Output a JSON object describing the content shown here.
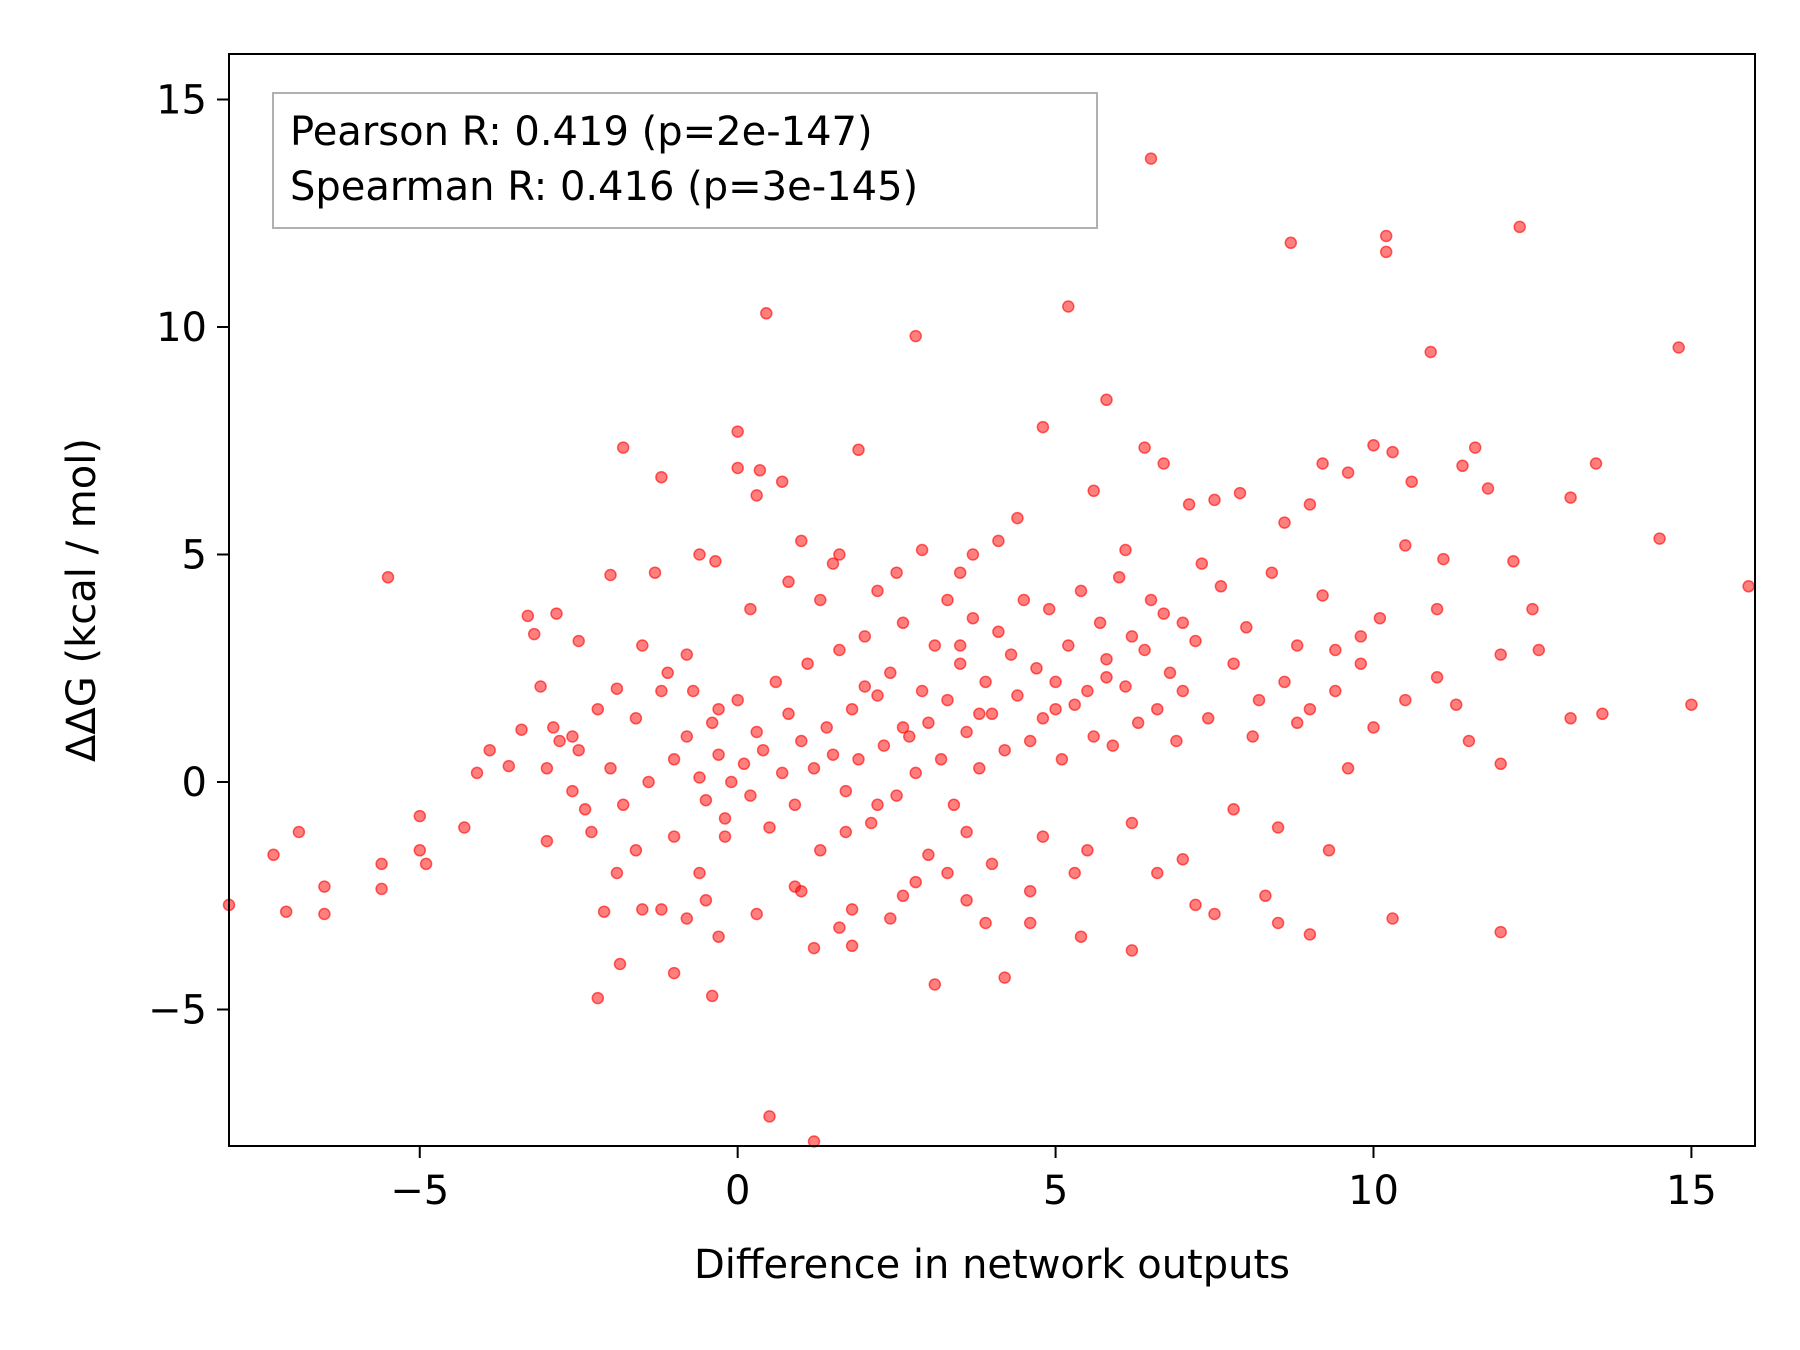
{
  "chart_data": {
    "type": "scatter",
    "title": "",
    "xlabel": "Difference in network outputs",
    "ylabel": "ΔΔG (kcal / mol)",
    "xlim": [
      -8,
      16
    ],
    "ylim": [
      -8,
      16
    ],
    "xticks": [
      -5,
      0,
      5,
      10,
      15
    ],
    "yticks": [
      -5,
      0,
      5,
      10,
      15
    ],
    "xtick_labels": [
      "−5",
      "0",
      "5",
      "10",
      "15"
    ],
    "ytick_labels": [
      "−5",
      "0",
      "5",
      "10",
      "15"
    ],
    "grid": false,
    "annotation": {
      "lines": [
        "Pearson R: 0.419 (p=2e-147)",
        "Spearman R: 0.416 (p=3e-145)"
      ],
      "placement": "top-left"
    },
    "marker_color": "#ff0000",
    "marker_alpha": 0.5,
    "series": [
      {
        "points": [
          [
            -8.0,
            -2.7
          ],
          [
            -7.3,
            -1.6
          ],
          [
            -7.1,
            -2.85
          ],
          [
            -6.9,
            -1.1
          ],
          [
            -6.5,
            -2.3
          ],
          [
            -6.5,
            -2.9
          ],
          [
            -5.6,
            -1.8
          ],
          [
            -5.6,
            -2.35
          ],
          [
            -5.5,
            4.5
          ],
          [
            -5.0,
            -0.75
          ],
          [
            -5.0,
            -1.5
          ],
          [
            -4.9,
            -1.8
          ],
          [
            -4.3,
            -1.0
          ],
          [
            -4.1,
            0.2
          ],
          [
            -3.9,
            0.7
          ],
          [
            -3.6,
            0.35
          ],
          [
            -3.4,
            1.15
          ],
          [
            -3.3,
            3.65
          ],
          [
            -3.2,
            3.25
          ],
          [
            -3.1,
            2.1
          ],
          [
            -3.0,
            0.3
          ],
          [
            -2.9,
            1.2
          ],
          [
            -2.85,
            3.7
          ],
          [
            -2.6,
            1.0
          ],
          [
            -2.5,
            0.7
          ],
          [
            -2.5,
            3.1
          ],
          [
            -2.4,
            -0.6
          ],
          [
            -2.3,
            -1.1
          ],
          [
            -2.2,
            -4.75
          ],
          [
            -2.1,
            -2.85
          ],
          [
            -2.0,
            4.55
          ],
          [
            -1.9,
            2.05
          ],
          [
            -1.9,
            -2.0
          ],
          [
            -1.85,
            -4.0
          ],
          [
            -1.8,
            7.35
          ],
          [
            -1.6,
            -1.5
          ],
          [
            -1.5,
            -2.8
          ],
          [
            -1.3,
            4.6
          ],
          [
            -1.2,
            6.7
          ],
          [
            -1.2,
            -2.8
          ],
          [
            -1.1,
            2.4
          ],
          [
            -1.0,
            -4.2
          ],
          [
            -0.8,
            -3.0
          ],
          [
            -0.7,
            2.0
          ],
          [
            -0.6,
            5.0
          ],
          [
            -0.4,
            -4.7
          ],
          [
            -0.35,
            4.85
          ],
          [
            -0.3,
            1.6
          ],
          [
            -0.3,
            -3.4
          ],
          [
            -0.2,
            -1.2
          ],
          [
            0.0,
            7.7
          ],
          [
            0.0,
            6.9
          ],
          [
            0.3,
            6.3
          ],
          [
            0.35,
            6.85
          ],
          [
            0.45,
            10.3
          ],
          [
            0.5,
            -7.35
          ],
          [
            0.7,
            6.6
          ],
          [
            0.9,
            -2.3
          ],
          [
            1.0,
            5.3
          ],
          [
            1.2,
            -3.65
          ],
          [
            1.2,
            -7.9
          ],
          [
            1.3,
            4.0
          ],
          [
            1.6,
            5.0
          ],
          [
            1.7,
            -1.1
          ],
          [
            1.8,
            -3.6
          ],
          [
            1.9,
            7.3
          ],
          [
            2.0,
            2.1
          ],
          [
            2.2,
            -0.5
          ],
          [
            2.5,
            4.6
          ],
          [
            2.6,
            1.2
          ],
          [
            2.8,
            -2.2
          ],
          [
            2.8,
            9.8
          ],
          [
            3.0,
            -1.6
          ],
          [
            3.1,
            -4.45
          ],
          [
            3.3,
            4.0
          ],
          [
            3.5,
            3.0
          ],
          [
            3.6,
            -1.1
          ],
          [
            3.7,
            5.0
          ],
          [
            3.8,
            1.5
          ],
          [
            3.9,
            -3.1
          ],
          [
            4.2,
            -4.3
          ],
          [
            4.4,
            5.8
          ],
          [
            4.6,
            -3.1
          ],
          [
            4.8,
            7.8
          ],
          [
            5.0,
            1.6
          ],
          [
            5.2,
            10.45
          ],
          [
            5.3,
            -2.0
          ],
          [
            5.6,
            6.4
          ],
          [
            5.8,
            2.3
          ],
          [
            5.8,
            8.4
          ],
          [
            6.1,
            5.1
          ],
          [
            6.2,
            -3.7
          ],
          [
            6.4,
            7.35
          ],
          [
            6.5,
            13.7
          ],
          [
            6.7,
            7.0
          ],
          [
            7.0,
            3.5
          ],
          [
            7.1,
            6.1
          ],
          [
            7.2,
            -2.7
          ],
          [
            7.3,
            4.8
          ],
          [
            7.5,
            6.2
          ],
          [
            7.9,
            6.35
          ],
          [
            8.1,
            1.0
          ],
          [
            8.3,
            -2.5
          ],
          [
            8.5,
            -3.1
          ],
          [
            8.6,
            5.7
          ],
          [
            8.7,
            11.85
          ],
          [
            8.8,
            1.3
          ],
          [
            9.0,
            -3.35
          ],
          [
            9.0,
            6.1
          ],
          [
            9.2,
            7.0
          ],
          [
            9.4,
            2.0
          ],
          [
            9.6,
            6.8
          ],
          [
            9.8,
            2.6
          ],
          [
            10.0,
            7.4
          ],
          [
            10.0,
            1.2
          ],
          [
            10.2,
            12.0
          ],
          [
            10.2,
            11.65
          ],
          [
            10.3,
            7.25
          ],
          [
            10.3,
            -3.0
          ],
          [
            10.5,
            5.2
          ],
          [
            10.6,
            6.6
          ],
          [
            10.9,
            9.45
          ],
          [
            11.0,
            3.8
          ],
          [
            11.1,
            4.9
          ],
          [
            11.3,
            1.7
          ],
          [
            11.4,
            6.95
          ],
          [
            11.6,
            7.35
          ],
          [
            11.8,
            6.45
          ],
          [
            12.0,
            2.8
          ],
          [
            12.0,
            0.4
          ],
          [
            12.0,
            -3.3
          ],
          [
            12.2,
            4.85
          ],
          [
            12.3,
            12.2
          ],
          [
            12.5,
            3.8
          ],
          [
            12.6,
            2.9
          ],
          [
            13.1,
            6.25
          ],
          [
            13.1,
            1.4
          ],
          [
            13.5,
            7.0
          ],
          [
            13.6,
            1.5
          ],
          [
            14.5,
            5.35
          ],
          [
            14.8,
            9.55
          ],
          [
            15.0,
            1.7
          ],
          [
            15.9,
            4.3
          ],
          [
            -1.0,
            0.5
          ],
          [
            -0.8,
            1.0
          ],
          [
            -0.6,
            0.1
          ],
          [
            -0.5,
            -0.4
          ],
          [
            -0.4,
            1.3
          ],
          [
            -0.3,
            0.6
          ],
          [
            -0.2,
            -0.8
          ],
          [
            -0.1,
            0.0
          ],
          [
            0.0,
            1.8
          ],
          [
            0.1,
            0.4
          ],
          [
            0.2,
            -0.3
          ],
          [
            0.3,
            1.1
          ],
          [
            0.4,
            0.7
          ],
          [
            0.5,
            -1.0
          ],
          [
            0.6,
            2.2
          ],
          [
            0.7,
            0.2
          ],
          [
            0.8,
            1.5
          ],
          [
            0.9,
            -0.5
          ],
          [
            1.0,
            0.9
          ],
          [
            1.1,
            2.6
          ],
          [
            1.2,
            0.3
          ],
          [
            1.3,
            -1.5
          ],
          [
            1.4,
            1.2
          ],
          [
            1.5,
            0.6
          ],
          [
            1.6,
            2.9
          ],
          [
            1.7,
            -0.2
          ],
          [
            1.8,
            1.6
          ],
          [
            1.9,
            0.5
          ],
          [
            2.0,
            3.2
          ],
          [
            2.1,
            -0.9
          ],
          [
            2.2,
            1.9
          ],
          [
            2.3,
            0.8
          ],
          [
            2.4,
            2.4
          ],
          [
            2.5,
            -0.3
          ],
          [
            2.6,
            3.5
          ],
          [
            2.7,
            1.0
          ],
          [
            2.8,
            0.2
          ],
          [
            2.9,
            2.0
          ],
          [
            3.0,
            1.3
          ],
          [
            3.1,
            3.0
          ],
          [
            3.2,
            0.5
          ],
          [
            3.3,
            1.8
          ],
          [
            3.4,
            -0.5
          ],
          [
            3.5,
            2.6
          ],
          [
            3.6,
            1.1
          ],
          [
            3.7,
            3.6
          ],
          [
            3.8,
            0.3
          ],
          [
            3.9,
            2.2
          ],
          [
            4.0,
            1.5
          ],
          [
            4.1,
            3.3
          ],
          [
            4.2,
            0.7
          ],
          [
            4.3,
            2.8
          ],
          [
            4.4,
            1.9
          ],
          [
            4.5,
            4.0
          ],
          [
            4.6,
            0.9
          ],
          [
            4.7,
            2.5
          ],
          [
            4.8,
            1.4
          ],
          [
            4.9,
            3.8
          ],
          [
            5.0,
            2.2
          ],
          [
            5.1,
            0.5
          ],
          [
            5.2,
            3.0
          ],
          [
            5.3,
            1.7
          ],
          [
            5.4,
            4.2
          ],
          [
            5.5,
            2.0
          ],
          [
            5.6,
            1.0
          ],
          [
            5.7,
            3.5
          ],
          [
            5.8,
            2.7
          ],
          [
            5.9,
            0.8
          ],
          [
            6.0,
            4.5
          ],
          [
            6.1,
            2.1
          ],
          [
            6.2,
            3.2
          ],
          [
            6.3,
            1.3
          ],
          [
            6.4,
            2.9
          ],
          [
            6.5,
            4.0
          ],
          [
            6.6,
            1.6
          ],
          [
            6.7,
            3.7
          ],
          [
            6.8,
            2.4
          ],
          [
            6.9,
            0.9
          ],
          [
            7.0,
            2.0
          ],
          [
            7.2,
            3.1
          ],
          [
            7.4,
            1.4
          ],
          [
            7.6,
            4.3
          ],
          [
            7.8,
            2.6
          ],
          [
            8.0,
            3.4
          ],
          [
            8.2,
            1.8
          ],
          [
            8.4,
            4.6
          ],
          [
            8.6,
            2.2
          ],
          [
            8.8,
            3.0
          ],
          [
            9.0,
            1.6
          ],
          [
            9.2,
            4.1
          ],
          [
            9.4,
            2.9
          ],
          [
            9.6,
            0.3
          ],
          [
            9.8,
            3.2
          ],
          [
            -2.0,
            0.3
          ],
          [
            -1.8,
            -0.5
          ],
          [
            -1.6,
            1.4
          ],
          [
            -1.4,
            0.0
          ],
          [
            -1.2,
            2.0
          ],
          [
            -1.0,
            -1.2
          ],
          [
            -0.8,
            2.8
          ],
          [
            -0.6,
            -2.0
          ],
          [
            -2.2,
            1.6
          ],
          [
            -2.6,
            -0.2
          ],
          [
            -2.8,
            0.9
          ],
          [
            -3.0,
            -1.3
          ],
          [
            -1.5,
            3.0
          ],
          [
            0.2,
            3.8
          ],
          [
            0.8,
            4.4
          ],
          [
            1.5,
            4.8
          ],
          [
            2.2,
            4.2
          ],
          [
            2.9,
            5.1
          ],
          [
            3.5,
            4.6
          ],
          [
            4.1,
            5.3
          ],
          [
            1.0,
            -2.4
          ],
          [
            1.8,
            -2.8
          ],
          [
            2.6,
            -2.5
          ],
          [
            3.3,
            -2.0
          ],
          [
            4.0,
            -1.8
          ],
          [
            4.8,
            -1.2
          ],
          [
            5.5,
            -1.5
          ],
          [
            6.2,
            -0.9
          ],
          [
            7.0,
            -1.7
          ],
          [
            7.8,
            -0.6
          ],
          [
            8.5,
            -1.0
          ],
          [
            9.3,
            -1.5
          ],
          [
            10.5,
            1.8
          ],
          [
            11.0,
            2.3
          ],
          [
            11.5,
            0.9
          ],
          [
            10.1,
            3.6
          ],
          [
            -0.5,
            -2.6
          ],
          [
            0.3,
            -2.9
          ],
          [
            1.6,
            -3.2
          ],
          [
            2.4,
            -3.0
          ],
          [
            3.6,
            -2.6
          ],
          [
            4.6,
            -2.4
          ],
          [
            5.4,
            -3.4
          ],
          [
            6.6,
            -2.0
          ],
          [
            7.5,
            -2.9
          ]
        ]
      }
    ]
  }
}
